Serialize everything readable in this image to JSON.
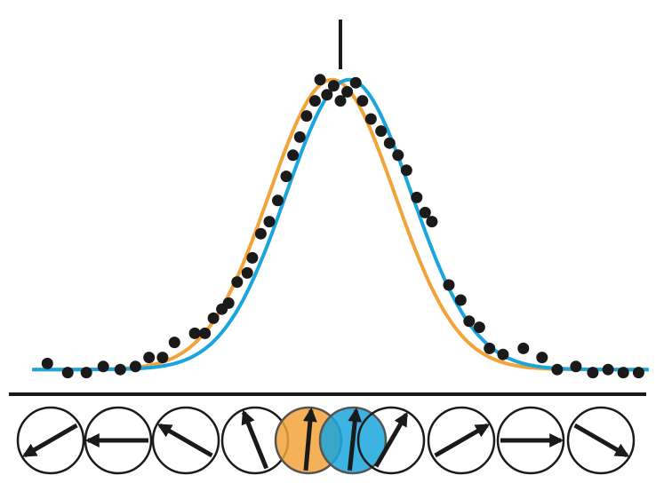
{
  "chart_data": {
    "type": "scatter",
    "title": "",
    "xlabel": "",
    "ylabel": "",
    "xlim": [
      -180,
      180
    ],
    "ylim": [
      0,
      1
    ],
    "grid": false,
    "legend": "none",
    "peak_marker_x": 0,
    "points": [
      {
        "x": -173,
        "y": 0.04
      },
      {
        "x": -161,
        "y": 0.01
      },
      {
        "x": -150,
        "y": 0.01
      },
      {
        "x": -140,
        "y": 0.03
      },
      {
        "x": -130,
        "y": 0.02
      },
      {
        "x": -121,
        "y": 0.03
      },
      {
        "x": -113,
        "y": 0.06
      },
      {
        "x": -105,
        "y": 0.06
      },
      {
        "x": -98,
        "y": 0.11
      },
      {
        "x": -86,
        "y": 0.14
      },
      {
        "x": -80,
        "y": 0.14
      },
      {
        "x": -75,
        "y": 0.19
      },
      {
        "x": -70,
        "y": 0.22
      },
      {
        "x": -66,
        "y": 0.24
      },
      {
        "x": -61,
        "y": 0.31
      },
      {
        "x": -55,
        "y": 0.34
      },
      {
        "x": -52,
        "y": 0.39
      },
      {
        "x": -47,
        "y": 0.47
      },
      {
        "x": -42,
        "y": 0.51
      },
      {
        "x": -37,
        "y": 0.58
      },
      {
        "x": -32,
        "y": 0.66
      },
      {
        "x": -28,
        "y": 0.73
      },
      {
        "x": -24,
        "y": 0.79
      },
      {
        "x": -20,
        "y": 0.86
      },
      {
        "x": -15,
        "y": 0.91
      },
      {
        "x": -12,
        "y": 0.98
      },
      {
        "x": -8,
        "y": 0.93
      },
      {
        "x": -4,
        "y": 0.96
      },
      {
        "x": 0,
        "y": 0.91
      },
      {
        "x": 4,
        "y": 0.94
      },
      {
        "x": 9,
        "y": 0.97
      },
      {
        "x": 13,
        "y": 0.91
      },
      {
        "x": 18,
        "y": 0.85
      },
      {
        "x": 24,
        "y": 0.81
      },
      {
        "x": 29,
        "y": 0.77
      },
      {
        "x": 34,
        "y": 0.73
      },
      {
        "x": 39,
        "y": 0.68
      },
      {
        "x": 45,
        "y": 0.59
      },
      {
        "x": 50,
        "y": 0.54
      },
      {
        "x": 54,
        "y": 0.51
      },
      {
        "x": 64,
        "y": 0.3
      },
      {
        "x": 71,
        "y": 0.25
      },
      {
        "x": 76,
        "y": 0.18
      },
      {
        "x": 82,
        "y": 0.16
      },
      {
        "x": 88,
        "y": 0.09
      },
      {
        "x": 96,
        "y": 0.07
      },
      {
        "x": 108,
        "y": 0.09
      },
      {
        "x": 119,
        "y": 0.06
      },
      {
        "x": 128,
        "y": 0.02
      },
      {
        "x": 139,
        "y": 0.03
      },
      {
        "x": 149,
        "y": 0.01
      },
      {
        "x": 158,
        "y": 0.02
      },
      {
        "x": 167,
        "y": 0.01
      },
      {
        "x": 176,
        "y": 0.01
      }
    ],
    "series": [
      {
        "color": "#f2a33a",
        "curve": {
          "amplitude": 0.96,
          "mean": -5,
          "sigma": 37,
          "baseline": 0.02
        }
      },
      {
        "color": "#1aa6dc",
        "curve": {
          "amplitude": 0.96,
          "mean": 5,
          "sigma": 37,
          "baseline": 0.02
        }
      }
    ],
    "stimuli": [
      {
        "angle": 240,
        "fill": "none"
      },
      {
        "angle": 270,
        "fill": "none"
      },
      {
        "angle": 300,
        "fill": "none"
      },
      {
        "angle": 338,
        "fill": "none"
      },
      {
        "angle": 5,
        "fill": "#f2a33a"
      },
      {
        "angle": 6,
        "fill": "#1aa6dc"
      },
      {
        "angle": 30,
        "fill": "none"
      },
      {
        "angle": 60,
        "fill": "none"
      },
      {
        "angle": 90,
        "fill": "none"
      },
      {
        "angle": 120,
        "fill": "none"
      }
    ]
  }
}
